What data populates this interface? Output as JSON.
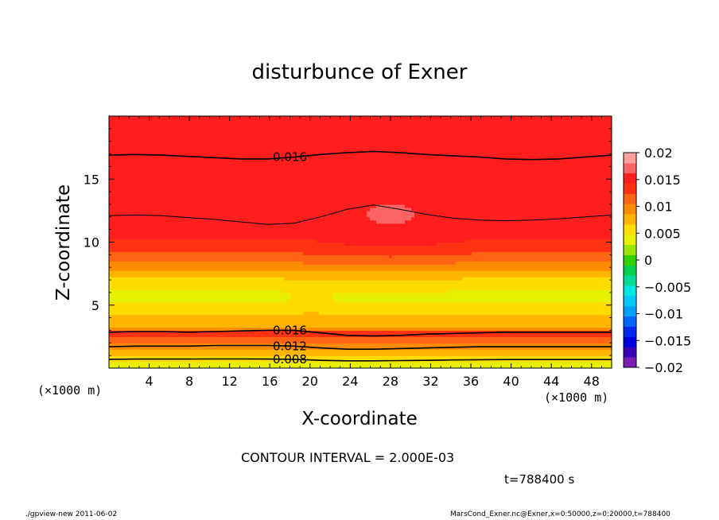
{
  "chart_data": {
    "type": "heatmap",
    "title": "disturbunce of Exner",
    "xlabel": "X-coordinate",
    "ylabel": "Z-coordinate",
    "x_unit": "(×1000 m)",
    "x_unit_right": "(×1000 m)",
    "xlim": [
      0,
      50
    ],
    "ylim": [
      0,
      20
    ],
    "x_ticks": [
      4,
      8,
      12,
      16,
      20,
      24,
      28,
      32,
      36,
      40,
      44,
      48
    ],
    "y_ticks": [
      5,
      10,
      15
    ],
    "colorbar": {
      "levels": [
        -0.02,
        -0.018,
        -0.016,
        -0.014,
        -0.012,
        -0.01,
        -0.008,
        -0.006,
        -0.004,
        -0.002,
        0,
        0.002,
        0.004,
        0.006,
        0.008,
        0.01,
        0.012,
        0.014,
        0.016,
        0.018,
        0.02
      ],
      "tick_labels": [
        "−0.02",
        "−0.015",
        "−0.01",
        "−0.005",
        "0",
        "0.005",
        "0.01",
        "0.015",
        "0.02"
      ],
      "tick_values": [
        -0.02,
        -0.015,
        -0.01,
        -0.005,
        0,
        0.005,
        0.01,
        0.015,
        0.02
      ],
      "colors": [
        "#7a1fb4",
        "#3c00b4",
        "#0000dc",
        "#0028f0",
        "#0064ff",
        "#00a0ff",
        "#00c8ff",
        "#00e6e6",
        "#00dc96",
        "#00d250",
        "#32d200",
        "#9be600",
        "#e6f000",
        "#ffdc00",
        "#ffb400",
        "#ff8c00",
        "#ff6414",
        "#ff3214",
        "#ff1e1e",
        "#ff6464",
        "#ffa0a0"
      ]
    },
    "contours": [
      {
        "level": 0.016,
        "label": "0.016",
        "z": [
          16.9,
          16.95,
          16.9,
          16.8,
          16.7,
          16.6,
          16.6,
          16.75,
          16.95,
          17.1,
          17.2,
          17.1,
          16.95,
          16.85,
          16.75,
          16.6,
          16.55,
          16.6,
          16.75,
          16.9
        ]
      },
      {
        "level": 0.012,
        "z": [
          12.1,
          12.15,
          12.1,
          11.95,
          11.8,
          11.6,
          11.4,
          11.5,
          12.0,
          12.6,
          12.95,
          12.6,
          12.2,
          11.9,
          11.75,
          11.7,
          11.75,
          11.85,
          12.0,
          12.15
        ]
      },
      {
        "level": 0.016,
        "label": "0.016",
        "z": [
          2.85,
          2.9,
          2.9,
          2.85,
          2.9,
          2.95,
          3.0,
          3.0,
          2.8,
          2.6,
          2.55,
          2.6,
          2.7,
          2.75,
          2.8,
          2.85,
          2.85,
          2.85,
          2.85,
          2.85
        ]
      },
      {
        "level": 0.012,
        "label": "0.012",
        "z": [
          1.7,
          1.75,
          1.75,
          1.75,
          1.8,
          1.8,
          1.8,
          1.75,
          1.6,
          1.5,
          1.5,
          1.55,
          1.6,
          1.65,
          1.7,
          1.7,
          1.7,
          1.7,
          1.7,
          1.7
        ]
      },
      {
        "level": 0.008,
        "label": "0.008",
        "z": [
          0.7,
          0.72,
          0.72,
          0.72,
          0.73,
          0.73,
          0.72,
          0.7,
          0.62,
          0.58,
          0.58,
          0.6,
          0.62,
          0.65,
          0.67,
          0.68,
          0.68,
          0.68,
          0.68,
          0.68
        ]
      }
    ],
    "white_region_note": "",
    "contour_interval_text": "CONTOUR INTERVAL = 2.000E-03",
    "time_text": "t=788400 s"
  },
  "footer": {
    "left": "./gpview-new   2011-06-02",
    "right": "MarsCond_Exner.nc@Exner,x=0:50000,z=0:20000,t=788400"
  }
}
